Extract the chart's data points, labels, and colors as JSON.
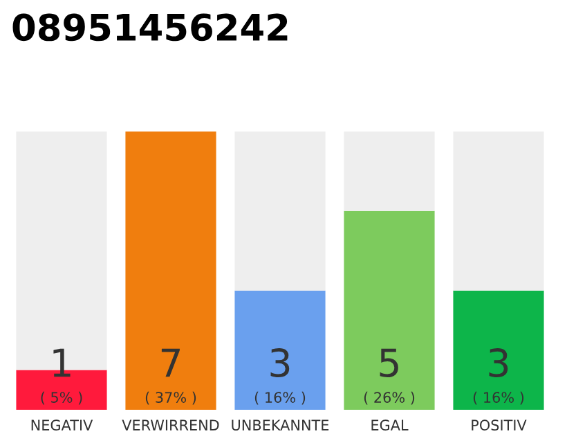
{
  "chart_data": {
    "type": "bar",
    "title": "08951456242",
    "stacked": true,
    "categories": [
      "NEGATIV",
      "VERWIRREND",
      "UNBEKANNTE",
      "EGAL",
      "POSITIV"
    ],
    "series": [
      {
        "colors": [
          "#ff1a3c",
          "#f07e0e",
          "#6aa0ee",
          "#7dcb5d",
          "#0db54a"
        ],
        "values": [
          1,
          7,
          3,
          5,
          3
        ],
        "value_labels": [
          "1",
          "7",
          "3",
          "5",
          "3"
        ]
      },
      {
        "color": "#eeeeee",
        "values": [
          6,
          0,
          4,
          2,
          4
        ]
      }
    ],
    "annotations": [
      "( 5% )",
      "( 37% )",
      "( 16% )",
      "( 26% )",
      "( 16% )"
    ],
    "grid": false,
    "legend": false
  }
}
